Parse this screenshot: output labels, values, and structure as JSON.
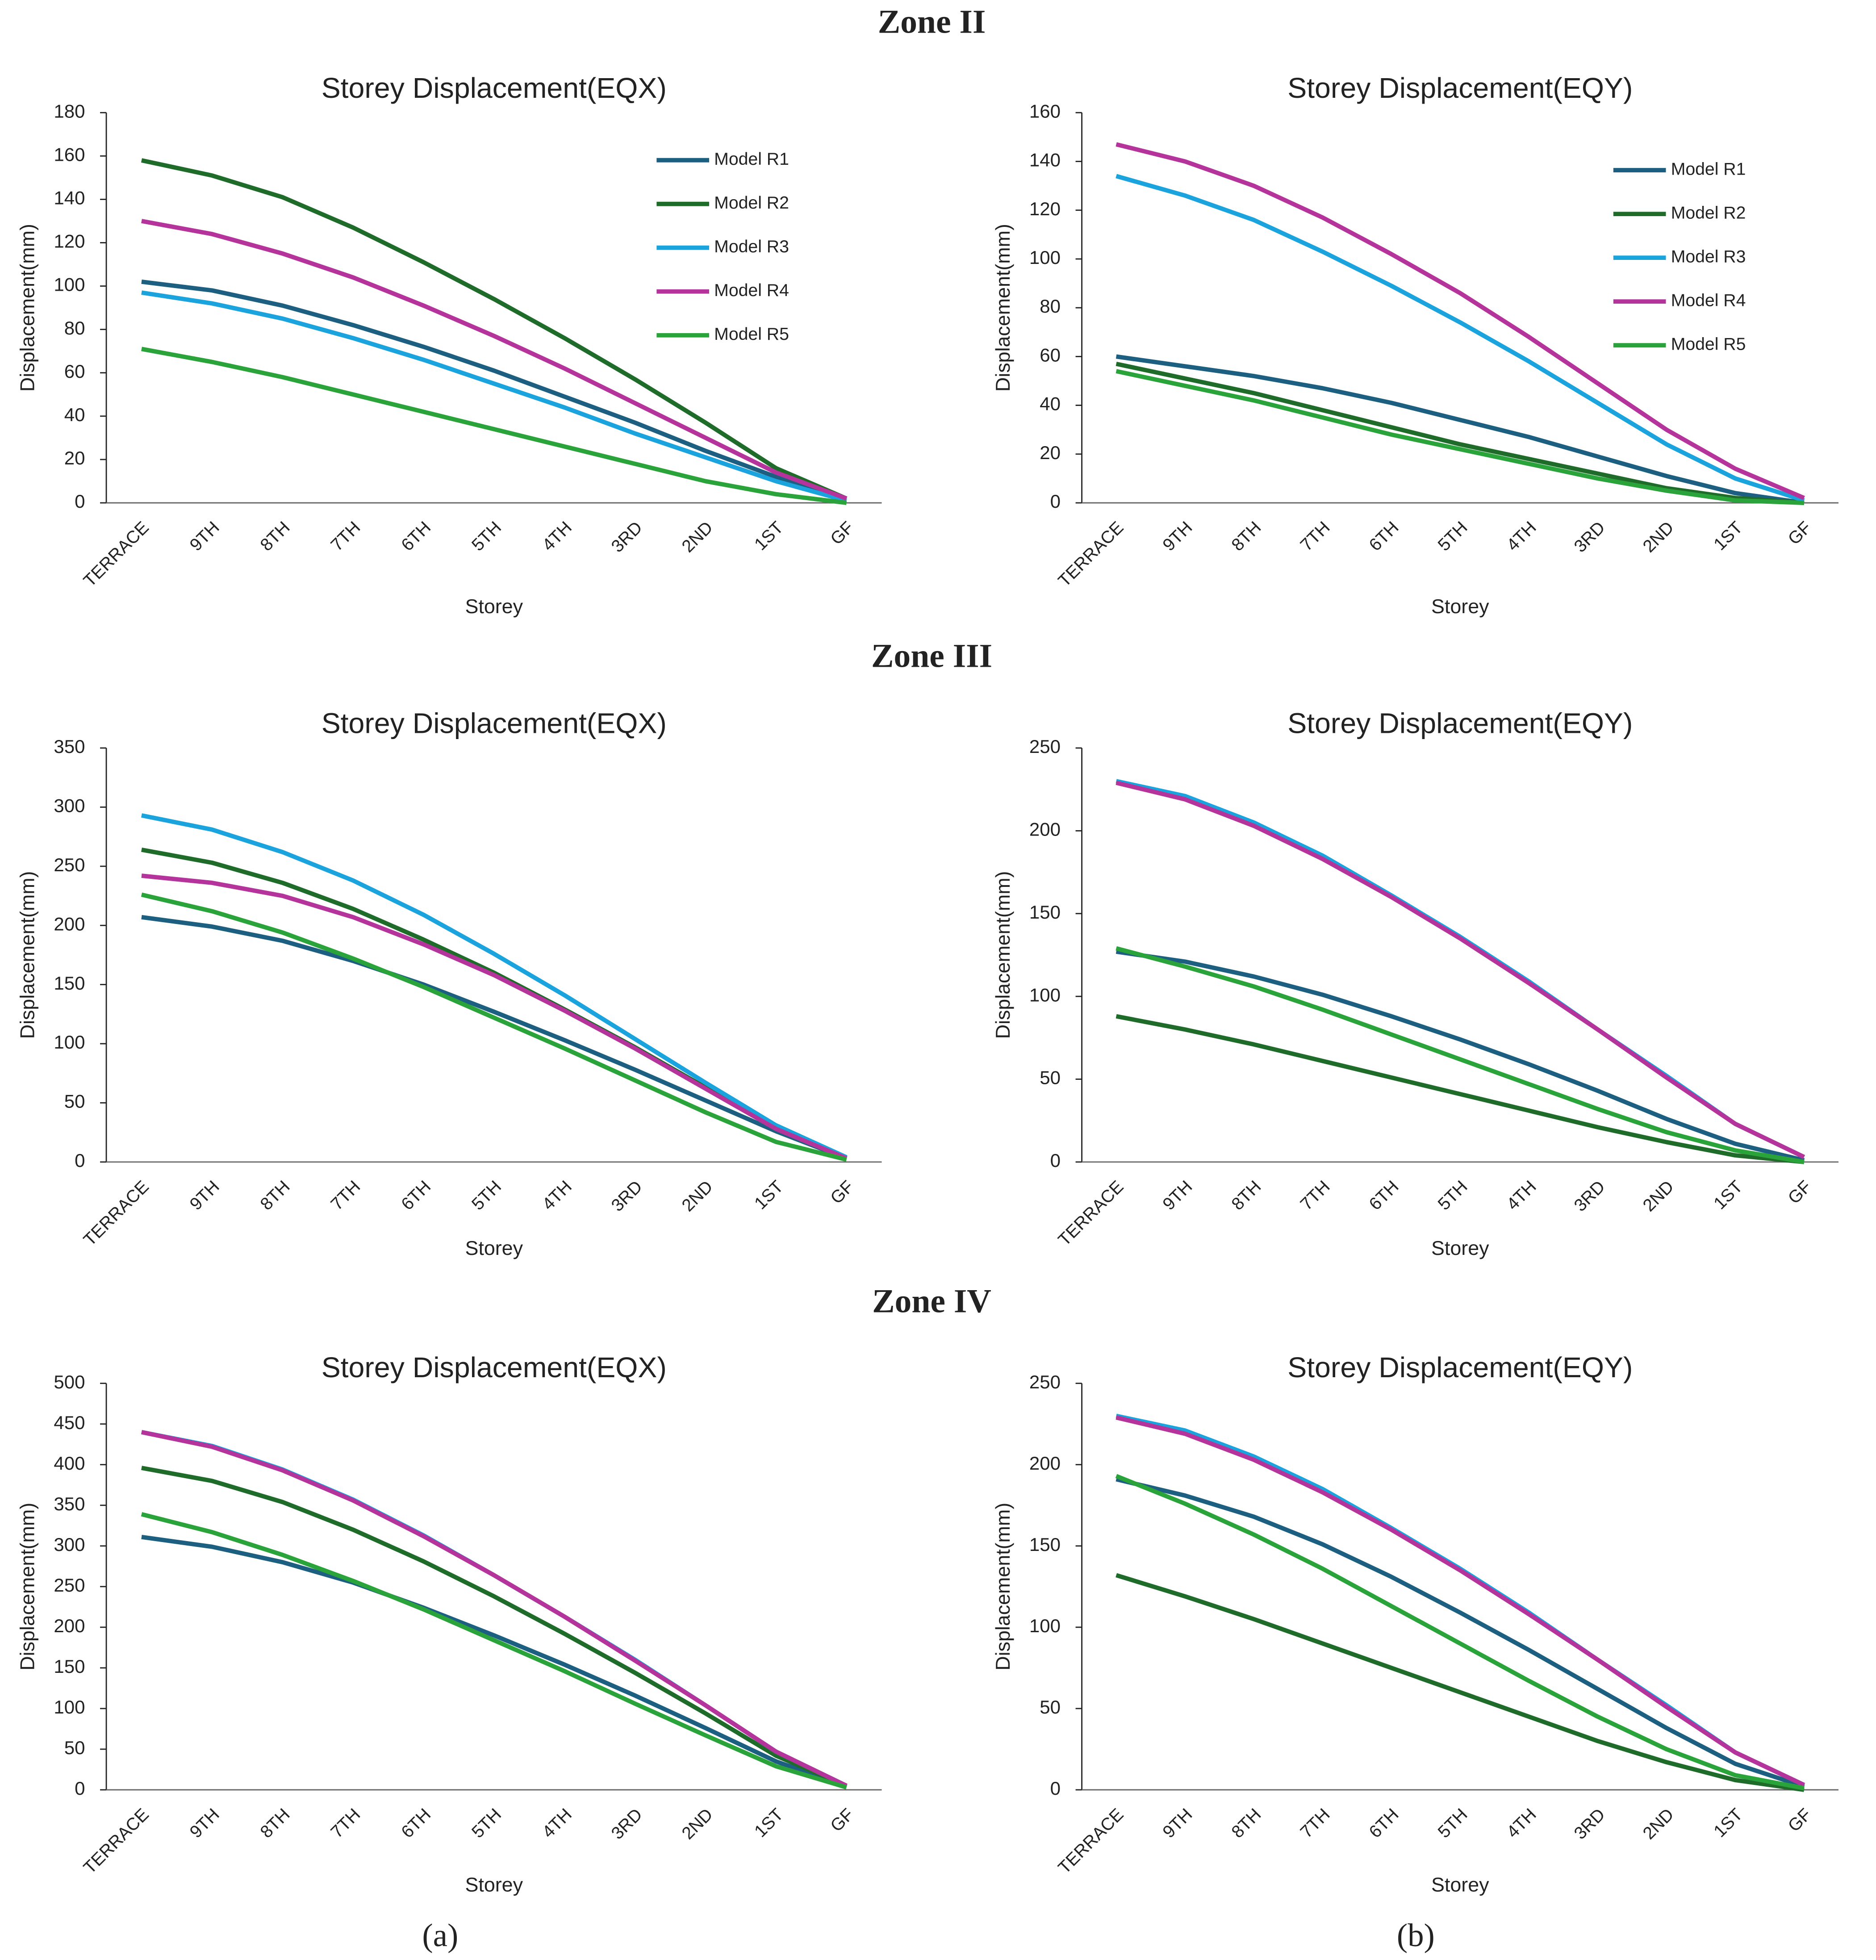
{
  "headings": [
    "Zone II",
    "Zone III",
    "Zone IV"
  ],
  "panel_labels": [
    "(a)",
    "(b)"
  ],
  "chart_data": [
    {
      "type": "line",
      "title": "Storey Displacement(EQX)",
      "x_label": "Storey",
      "y_label": "Displacement(mm)",
      "categories": [
        "TERRACE",
        "9TH",
        "8TH",
        "7TH",
        "6TH",
        "5TH",
        "4TH",
        "3RD",
        "2ND",
        "1ST",
        "GF"
      ],
      "ylim": [
        0,
        180
      ],
      "yticks": [
        0,
        20,
        40,
        60,
        80,
        100,
        120,
        140,
        160,
        180
      ],
      "legend": "upper right",
      "series": [
        {
          "name": "Model R1",
          "color": "#1d5f80",
          "values": [
            102,
            98,
            91,
            82,
            72,
            61,
            49,
            37,
            24,
            12,
            2
          ]
        },
        {
          "name": "Model R2",
          "color": "#1e6b2a",
          "values": [
            158,
            151,
            141,
            127,
            111,
            94,
            76,
            57,
            37,
            16,
            2
          ]
        },
        {
          "name": "Model R3",
          "color": "#1aa3dc",
          "values": [
            97,
            92,
            85,
            76,
            66,
            55,
            44,
            32,
            21,
            10,
            1
          ]
        },
        {
          "name": "Model R4",
          "color": "#b5349b",
          "values": [
            130,
            124,
            115,
            104,
            91,
            77,
            62,
            46,
            30,
            14,
            2
          ]
        },
        {
          "name": "Model R5",
          "color": "#2aa33a",
          "values": [
            71,
            65,
            58,
            50,
            42,
            34,
            26,
            18,
            10,
            4,
            0
          ]
        }
      ]
    },
    {
      "type": "line",
      "title": "Storey Displacement(EQY)",
      "x_label": "Storey",
      "y_label": "Displacement(mm)",
      "categories": [
        "TERRACE",
        "9TH",
        "8TH",
        "7TH",
        "6TH",
        "5TH",
        "4TH",
        "3RD",
        "2ND",
        "1ST",
        "GF"
      ],
      "ylim": [
        0,
        160
      ],
      "yticks": [
        0,
        20,
        40,
        60,
        80,
        100,
        120,
        140,
        160
      ],
      "legend": "upper right",
      "series": [
        {
          "name": "Model R1",
          "color": "#1d5f80",
          "values": [
            60,
            56,
            52,
            47,
            41,
            34,
            27,
            19,
            11,
            4,
            0
          ]
        },
        {
          "name": "Model R2",
          "color": "#1e6b2a",
          "values": [
            57,
            51,
            45,
            38,
            31,
            24,
            18,
            12,
            6,
            2,
            0
          ]
        },
        {
          "name": "Model R3",
          "color": "#1aa3dc",
          "values": [
            134,
            126,
            116,
            103,
            89,
            74,
            58,
            41,
            24,
            10,
            1
          ]
        },
        {
          "name": "Model R4",
          "color": "#b5349b",
          "values": [
            147,
            140,
            130,
            117,
            102,
            86,
            68,
            49,
            30,
            14,
            2
          ]
        },
        {
          "name": "Model R5",
          "color": "#2aa33a",
          "values": [
            54,
            48,
            42,
            35,
            28,
            22,
            16,
            10,
            5,
            1,
            0
          ]
        }
      ]
    },
    {
      "type": "line",
      "title": "Storey Displacement(EQX)",
      "x_label": "Storey",
      "y_label": "Displacement(mm)",
      "categories": [
        "TERRACE",
        "9TH",
        "8TH",
        "7TH",
        "6TH",
        "5TH",
        "4TH",
        "3RD",
        "2ND",
        "1ST",
        "GF"
      ],
      "ylim": [
        0,
        350
      ],
      "yticks": [
        0,
        50,
        100,
        150,
        200,
        250,
        300,
        350
      ],
      "series": [
        {
          "color": "#1d5f80",
          "values": [
            207,
            199,
            187,
            170,
            150,
            127,
            103,
            78,
            52,
            26,
            3
          ]
        },
        {
          "color": "#1e6b2a",
          "values": [
            264,
            253,
            236,
            214,
            188,
            160,
            129,
            97,
            63,
            29,
            3
          ]
        },
        {
          "color": "#1aa3dc",
          "values": [
            293,
            281,
            262,
            238,
            209,
            176,
            141,
            104,
            67,
            31,
            4
          ]
        },
        {
          "color": "#b5349b",
          "values": [
            242,
            236,
            225,
            207,
            184,
            158,
            128,
            96,
            62,
            28,
            3
          ]
        },
        {
          "color": "#2aa33a",
          "values": [
            226,
            212,
            194,
            172,
            148,
            122,
            96,
            69,
            42,
            17,
            2
          ]
        }
      ]
    },
    {
      "type": "line",
      "title": "Storey Displacement(EQY)",
      "x_label": "Storey",
      "y_label": "Displacement(mm)",
      "categories": [
        "TERRACE",
        "9TH",
        "8TH",
        "7TH",
        "6TH",
        "5TH",
        "4TH",
        "3RD",
        "2ND",
        "1ST",
        "GF"
      ],
      "ylim": [
        0,
        250
      ],
      "yticks": [
        0,
        50,
        100,
        150,
        200,
        250
      ],
      "series": [
        {
          "color": "#1d5f80",
          "values": [
            127,
            121,
            112,
            101,
            88,
            74,
            59,
            43,
            26,
            11,
            1
          ]
        },
        {
          "color": "#1e6b2a",
          "values": [
            88,
            80,
            71,
            61,
            51,
            41,
            31,
            21,
            12,
            4,
            0
          ]
        },
        {
          "color": "#1aa3dc",
          "values": [
            230,
            221,
            205,
            185,
            161,
            136,
            109,
            80,
            52,
            23,
            3
          ]
        },
        {
          "color": "#b5349b",
          "values": [
            229,
            219,
            203,
            183,
            160,
            135,
            108,
            80,
            51,
            23,
            3
          ]
        },
        {
          "color": "#2aa33a",
          "values": [
            129,
            118,
            106,
            92,
            77,
            62,
            47,
            32,
            18,
            7,
            0
          ]
        }
      ]
    },
    {
      "type": "line",
      "title": "Storey Displacement(EQX)",
      "x_label": "Storey",
      "y_label": "Displacement(mm)",
      "categories": [
        "TERRACE",
        "9TH",
        "8TH",
        "7TH",
        "6TH",
        "5TH",
        "4TH",
        "3RD",
        "2ND",
        "1ST",
        "GF"
      ],
      "ylim": [
        0,
        500
      ],
      "yticks": [
        0,
        50,
        100,
        150,
        200,
        250,
        300,
        350,
        400,
        450,
        500
      ],
      "series": [
        {
          "color": "#1d5f80",
          "values": [
            311,
            299,
            280,
            255,
            224,
            190,
            154,
            116,
            76,
            35,
            4
          ]
        },
        {
          "color": "#1e6b2a",
          "values": [
            396,
            380,
            354,
            320,
            281,
            238,
            192,
            144,
            94,
            42,
            5
          ]
        },
        {
          "color": "#1aa3dc",
          "values": [
            440,
            423,
            394,
            357,
            313,
            264,
            213,
            160,
            104,
            47,
            5
          ]
        },
        {
          "color": "#b5349b",
          "values": [
            440,
            422,
            393,
            356,
            312,
            264,
            213,
            159,
            104,
            47,
            5
          ]
        },
        {
          "color": "#2aa33a",
          "values": [
            339,
            317,
            289,
            257,
            222,
            184,
            146,
            106,
            67,
            29,
            3
          ]
        }
      ]
    },
    {
      "type": "line",
      "title": "Storey Displacement(EQY)",
      "x_label": "Storey",
      "y_label": "Displacement(mm)",
      "categories": [
        "TERRACE",
        "9TH",
        "8TH",
        "7TH",
        "6TH",
        "5TH",
        "4TH",
        "3RD",
        "2ND",
        "1ST",
        "GF"
      ],
      "ylim": [
        0,
        250
      ],
      "yticks": [
        0,
        50,
        100,
        150,
        200,
        250
      ],
      "series": [
        {
          "color": "#1d5f80",
          "values": [
            191,
            181,
            168,
            151,
            131,
            109,
            86,
            62,
            38,
            16,
            2
          ]
        },
        {
          "color": "#1e6b2a",
          "values": [
            132,
            119,
            105,
            90,
            75,
            60,
            45,
            30,
            17,
            6,
            0
          ]
        },
        {
          "color": "#1aa3dc",
          "values": [
            230,
            221,
            205,
            185,
            161,
            136,
            109,
            80,
            52,
            23,
            3
          ]
        },
        {
          "color": "#b5349b",
          "values": [
            229,
            219,
            203,
            183,
            160,
            135,
            108,
            80,
            51,
            23,
            3
          ]
        },
        {
          "color": "#2aa33a",
          "values": [
            193,
            176,
            157,
            136,
            113,
            90,
            67,
            45,
            25,
            9,
            1
          ]
        }
      ]
    }
  ]
}
